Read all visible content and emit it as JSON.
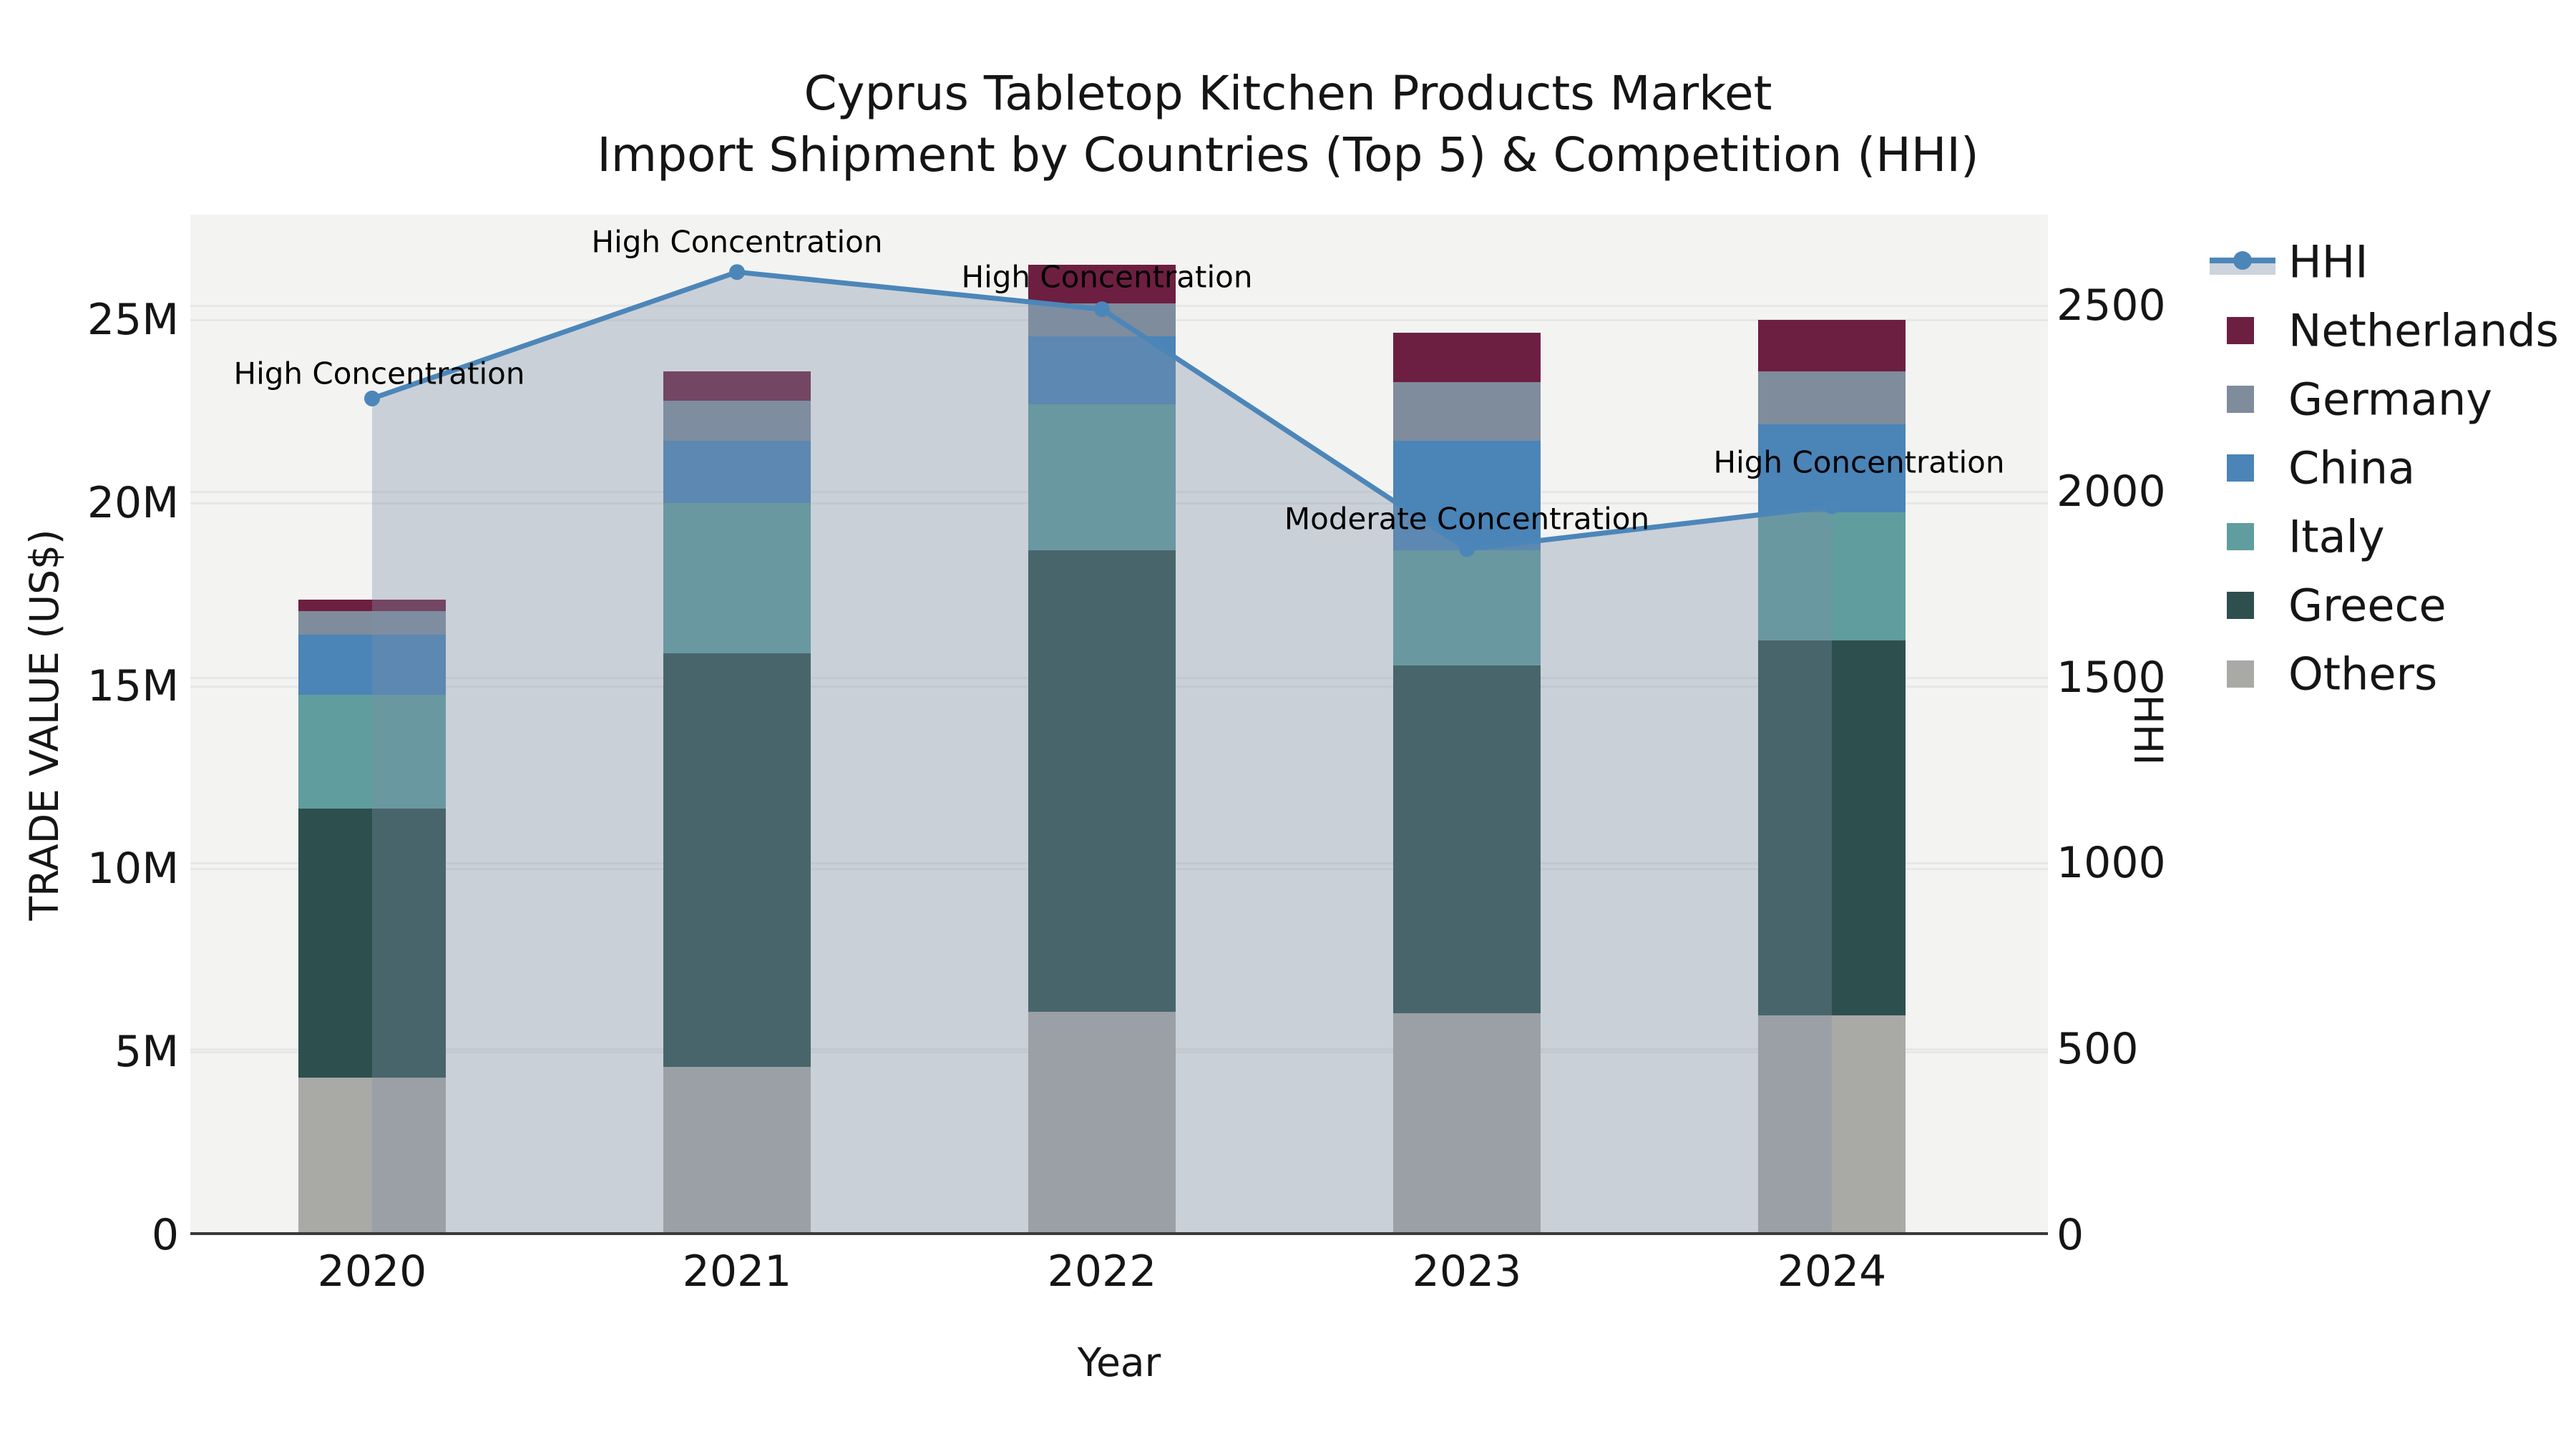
{
  "title": {
    "line1": "Cyprus Tabletop Kitchen Products Market",
    "line2": "Import Shipment by Countries (Top 5) & Competition (HHI)"
  },
  "axes": {
    "x": {
      "title": "Year",
      "ticks": [
        "2020",
        "2021",
        "2022",
        "2023",
        "2024"
      ]
    },
    "left": {
      "title": "TRADE VALUE (US$)",
      "ticks": [
        "0",
        "5M",
        "10M",
        "15M",
        "20M",
        "25M"
      ],
      "tick_values_millions": [
        0,
        5,
        10,
        15,
        20,
        25
      ]
    },
    "right": {
      "title": "HHI",
      "ticks": [
        "0",
        "500",
        "1000",
        "1500",
        "2000",
        "2500"
      ],
      "tick_values": [
        0,
        500,
        1000,
        1500,
        2000,
        2500
      ]
    }
  },
  "legend": [
    {
      "label": "HHI",
      "type": "line",
      "color": "#4c86b9"
    },
    {
      "label": "Netherlands",
      "type": "box",
      "color": "#6d1f41"
    },
    {
      "label": "Germany",
      "type": "box",
      "color": "#7e8c9c"
    },
    {
      "label": "China",
      "type": "box",
      "color": "#4b84b7"
    },
    {
      "label": "Italy",
      "type": "box",
      "color": "#609d9e"
    },
    {
      "label": "Greece",
      "type": "box",
      "color": "#2d4f4e"
    },
    {
      "label": "Others",
      "type": "box",
      "color": "#a9a9a6"
    }
  ],
  "colors": {
    "hhi_line": "#4c86b9",
    "hhi_area_fill": "rgba(126,144,166,0.35)",
    "plot_background": "#f3f3f2",
    "figure_background": "#ffffff",
    "gridline": "#e7e7e7",
    "x_spine": "#3a3a3a",
    "series": {
      "Netherlands": "#6d1f41",
      "Germany": "#7e8c9c",
      "China": "#4b84b7",
      "Italy": "#609d9e",
      "Greece": "#2d4f4e",
      "Others": "#a9a9a6"
    }
  },
  "chart_data": {
    "type": "combo: stacked-bar + line-with-area",
    "title": "Cyprus Tabletop Kitchen Products Market — Import Shipment by Countries (Top 5) & Competition (HHI)",
    "xlabel": "Year",
    "ylabel_left": "TRADE VALUE (US$)",
    "ylabel_right": "HHI",
    "x": [
      2020,
      2021,
      2022,
      2023,
      2024
    ],
    "units": "bar values in millions of US$ (M)",
    "stack_order_bottom_to_top": [
      "Others",
      "Greece",
      "Italy",
      "China",
      "Germany",
      "Netherlands"
    ],
    "series": [
      {
        "name": "Others",
        "values_musd": [
          4.3,
          4.6,
          6.1,
          6.05,
          6.0
        ]
      },
      {
        "name": "Greece",
        "values_musd": [
          7.35,
          11.3,
          12.6,
          9.5,
          10.25
        ]
      },
      {
        "name": "Italy",
        "values_musd": [
          3.1,
          4.1,
          4.0,
          3.15,
          3.5
        ]
      },
      {
        "name": "China",
        "values_musd": [
          1.65,
          1.7,
          1.85,
          3.0,
          2.4
        ]
      },
      {
        "name": "Germany",
        "values_musd": [
          0.65,
          1.1,
          0.9,
          1.6,
          1.45
        ]
      },
      {
        "name": "Netherlands",
        "values_musd": [
          0.3,
          0.8,
          1.05,
          1.35,
          1.4
        ]
      }
    ],
    "totals_musd": [
      17.35,
      23.6,
      26.5,
      24.65,
      25.0
    ],
    "hhi": [
      2250,
      2590,
      2490,
      1845,
      1960
    ],
    "hhi_annotations": [
      "High Concentration",
      "High Concentration",
      "High Concentration",
      "Moderate Concentration",
      "High Concentration"
    ],
    "ylim_left_musd": [
      0,
      27.9
    ],
    "ylim_right_hhi": [
      0,
      2745
    ],
    "grid": true,
    "legend_position": "right"
  }
}
